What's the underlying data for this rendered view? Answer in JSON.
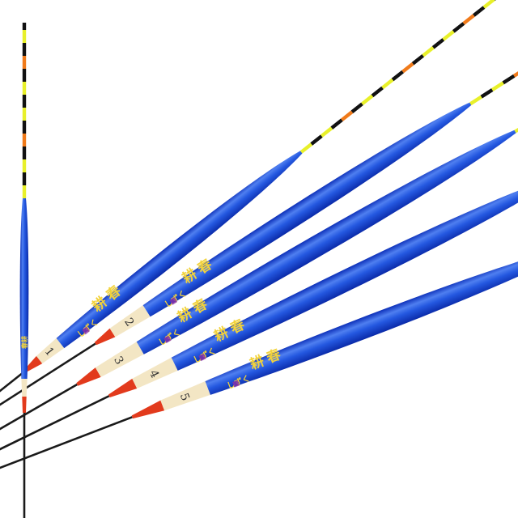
{
  "photo": {
    "subject": "fishing floats",
    "brand_text": "春耕",
    "model_text": "しずく",
    "floats": [
      {
        "number": ""
      },
      {
        "number": "1"
      },
      {
        "number": "2"
      },
      {
        "number": "3"
      },
      {
        "number": "4"
      },
      {
        "number": "5"
      }
    ],
    "colors": {
      "body": "#1f4fd8",
      "body_highlight": "#5a86f0",
      "text": "#f2d23a",
      "collar": "#f3e6c4",
      "band": "#e23a1c",
      "stem": "#1a1a1a",
      "tip_yellow": "#e8f02a",
      "tip_orange": "#f07a1a",
      "tip_black": "#111111"
    }
  }
}
